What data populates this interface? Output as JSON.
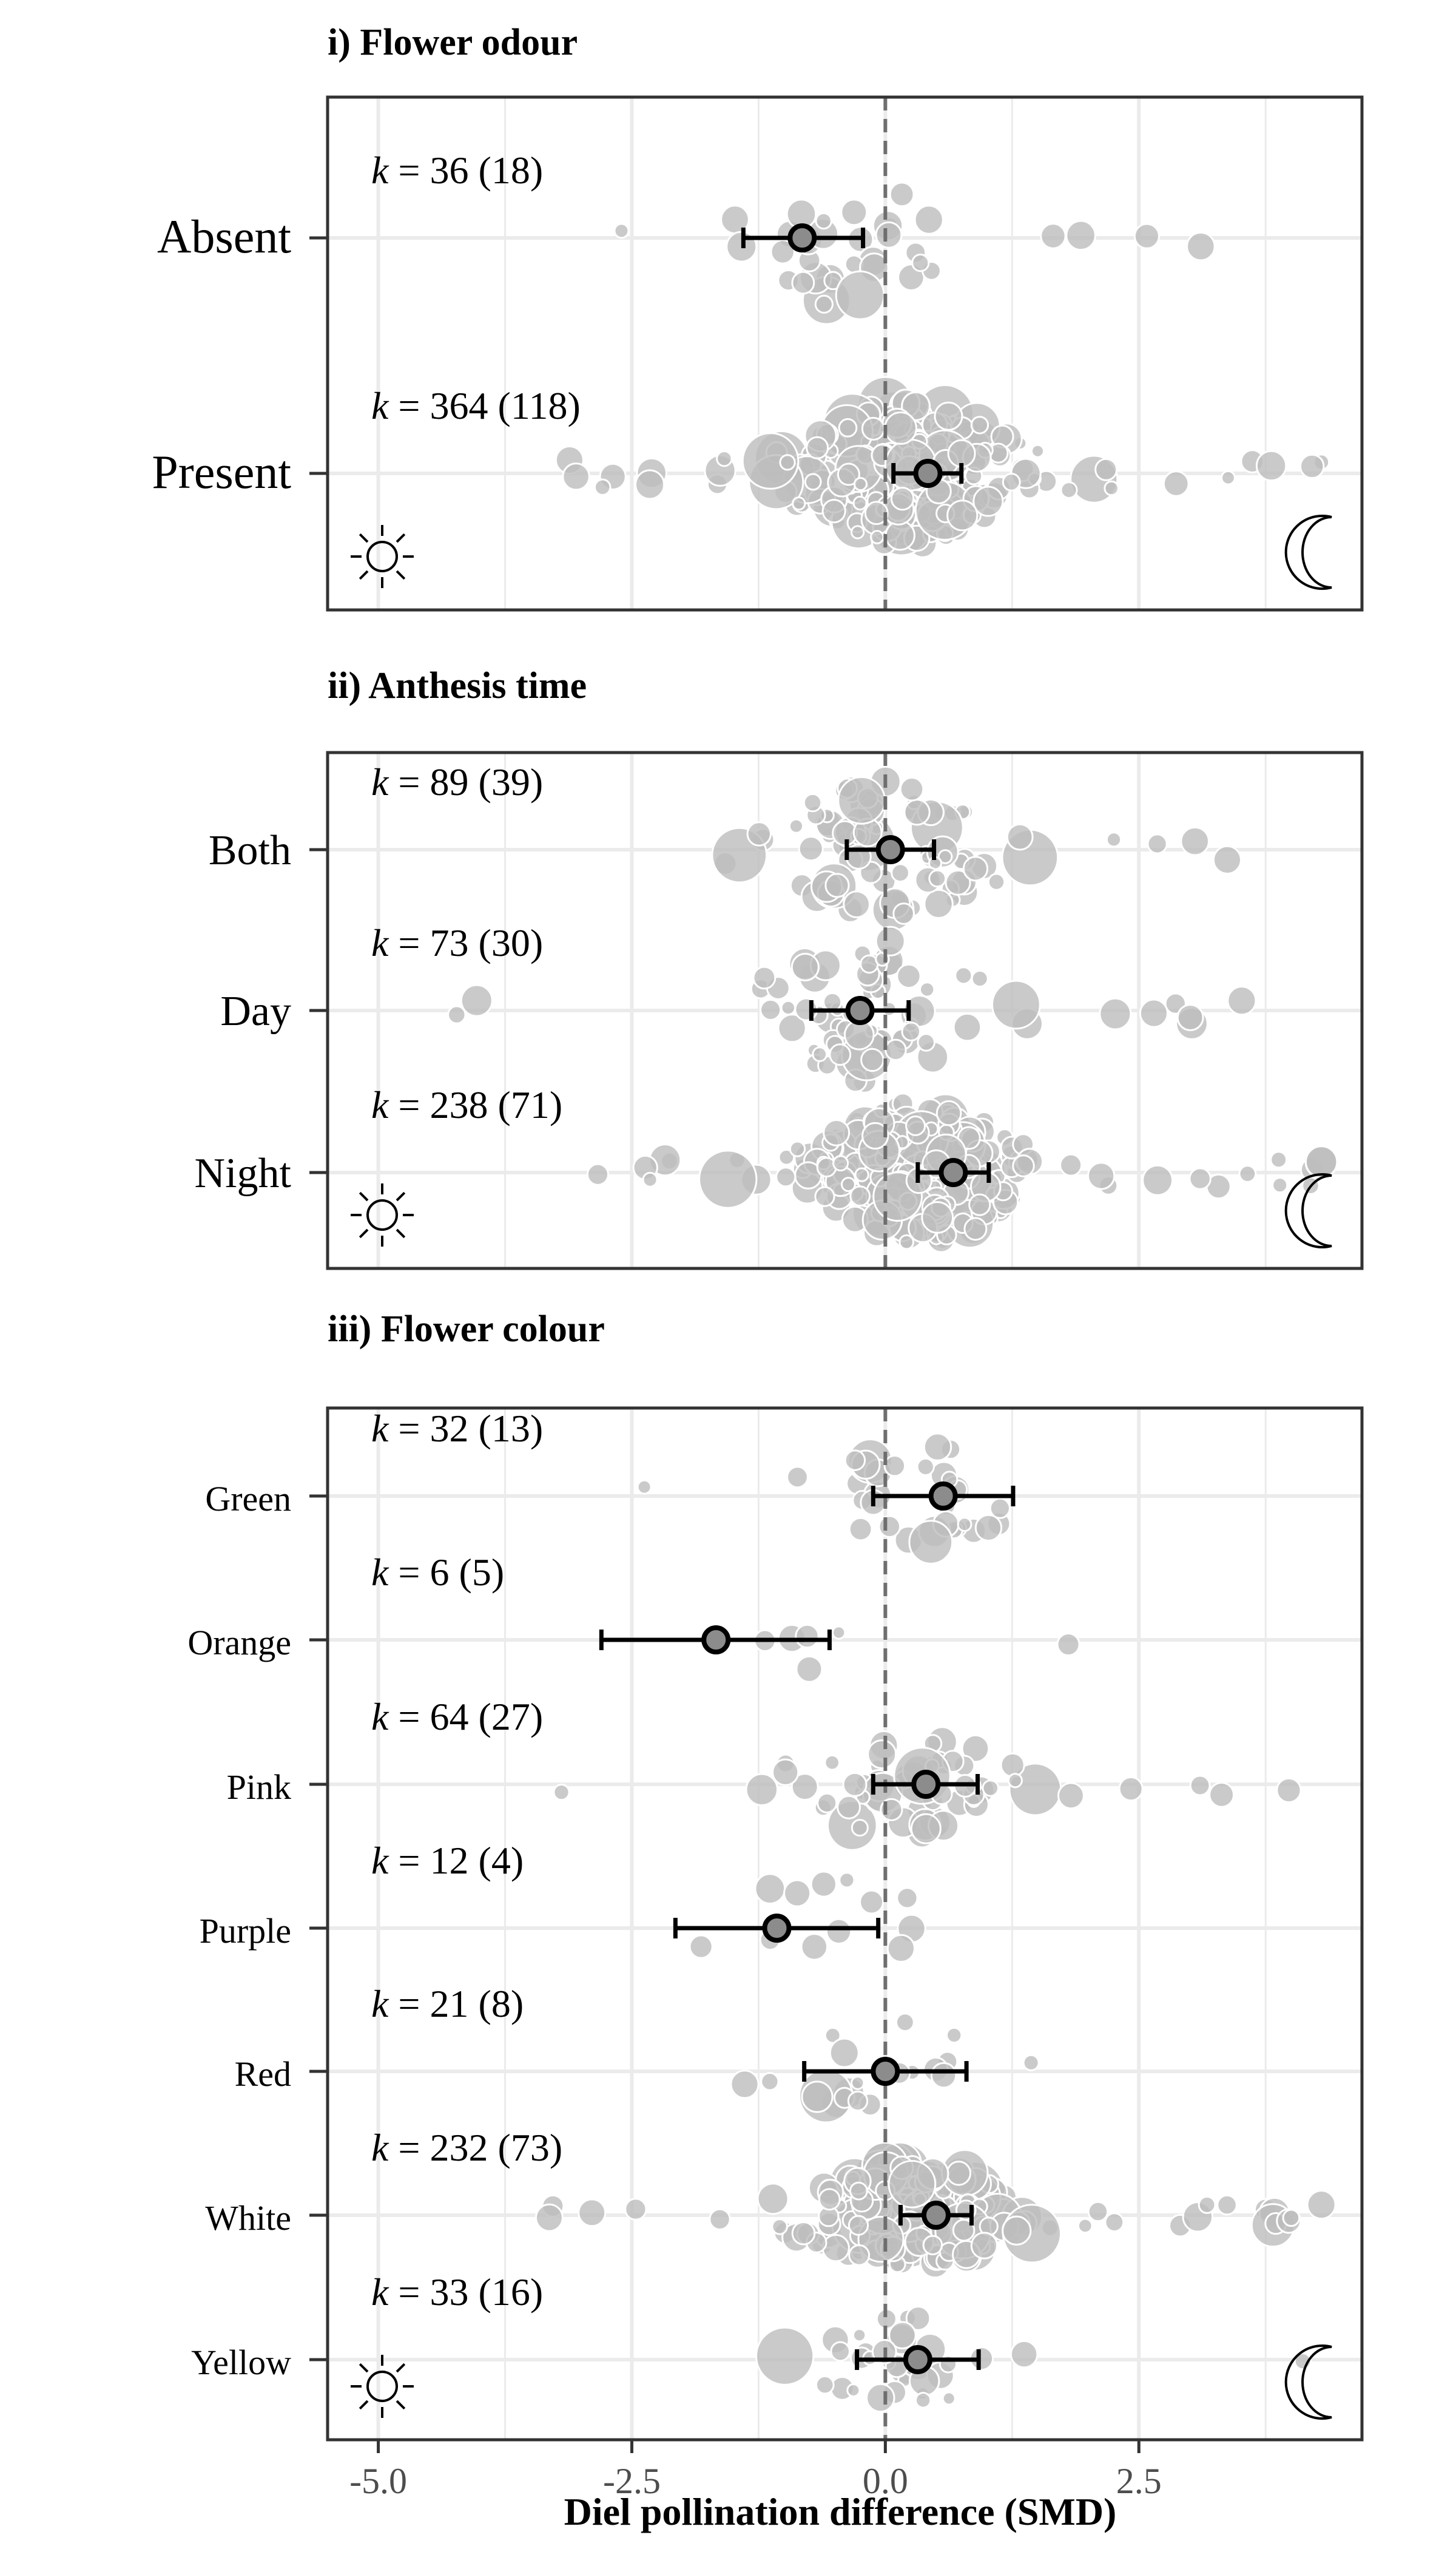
{
  "axis": {
    "xlabel": "Diel pollination difference (SMD)",
    "xlim": [
      -5.5,
      4.7
    ],
    "ticks": [
      -5.0,
      -2.5,
      0.0,
      2.5
    ],
    "tick_labels": [
      "-5.0",
      "-2.5",
      "0.0",
      "2.5"
    ],
    "grid": true,
    "reference_line": 0,
    "left_icon": "sun-icon",
    "right_icon": "moon-icon"
  },
  "colors": {
    "points": "#bdbdbd",
    "point_edge": "#ffffff",
    "estimate_fill": "#8c8c8c",
    "grid": "#ebebeb",
    "reference": "#6e6e6e"
  },
  "chart_data": [
    {
      "type": "scatter",
      "title": "i) Flower odour",
      "categories": [
        {
          "label": "Absent",
          "k": "36",
          "n": "18",
          "estimate": -0.82,
          "ci": [
            -1.4,
            -0.22
          ]
        },
        {
          "label": "Present",
          "k": "364",
          "n": "118",
          "estimate": 0.42,
          "ci": [
            0.08,
            0.75
          ]
        }
      ]
    },
    {
      "type": "scatter",
      "title": "ii) Anthesis time",
      "categories": [
        {
          "label": "Both",
          "k": "89",
          "n": "39",
          "estimate": 0.05,
          "ci": [
            -0.38,
            0.48
          ]
        },
        {
          "label": "Day",
          "k": "73",
          "n": "30",
          "estimate": -0.25,
          "ci": [
            -0.73,
            0.23
          ]
        },
        {
          "label": "Night",
          "k": "238",
          "n": "71",
          "estimate": 0.67,
          "ci": [
            0.32,
            1.02
          ]
        }
      ]
    },
    {
      "type": "scatter",
      "title": "iii) Flower colour",
      "categories": [
        {
          "label": "Green",
          "k": "32",
          "n": "13",
          "estimate": 0.57,
          "ci": [
            -0.12,
            1.26
          ]
        },
        {
          "label": "Orange",
          "k": "6",
          "n": "5",
          "estimate": -1.67,
          "ci": [
            -2.8,
            -0.55
          ]
        },
        {
          "label": "Pink",
          "k": "64",
          "n": "27",
          "estimate": 0.4,
          "ci": [
            -0.12,
            0.91
          ]
        },
        {
          "label": "Purple",
          "k": "12",
          "n": "4",
          "estimate": -1.07,
          "ci": [
            -2.07,
            -0.07
          ]
        },
        {
          "label": "Red",
          "k": "21",
          "n": "8",
          "estimate": 0.0,
          "ci": [
            -0.8,
            0.8
          ]
        },
        {
          "label": "White",
          "k": "232",
          "n": "73",
          "estimate": 0.5,
          "ci": [
            0.15,
            0.85
          ]
        },
        {
          "label": "Yellow",
          "k": "33",
          "n": "16",
          "estimate": 0.32,
          "ci": [
            -0.28,
            0.92
          ]
        }
      ]
    }
  ]
}
